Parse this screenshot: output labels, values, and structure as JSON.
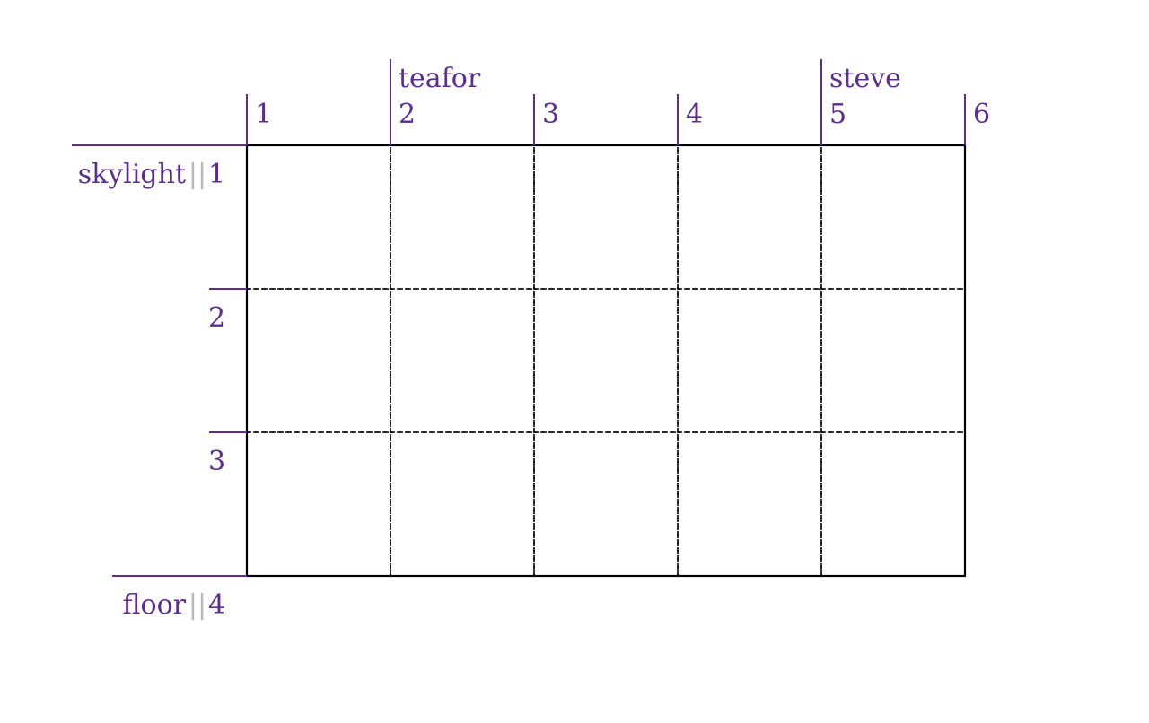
{
  "colors": {
    "accent": "#5b2d90",
    "grid_border": "#000000",
    "separator": "#b8b8b8",
    "background": "#ffffff"
  },
  "grid": {
    "columns": 5,
    "rows": 3
  },
  "column_lines": [
    {
      "number": "1",
      "name": ""
    },
    {
      "number": "2",
      "name": "teafor"
    },
    {
      "number": "3",
      "name": ""
    },
    {
      "number": "4",
      "name": ""
    },
    {
      "number": "5",
      "name": "steve"
    },
    {
      "number": "6",
      "name": ""
    }
  ],
  "row_lines": [
    {
      "number": "1",
      "name": "skylight"
    },
    {
      "number": "2",
      "name": ""
    },
    {
      "number": "3",
      "name": ""
    },
    {
      "number": "4",
      "name": "floor"
    }
  ],
  "name_separator": "||"
}
